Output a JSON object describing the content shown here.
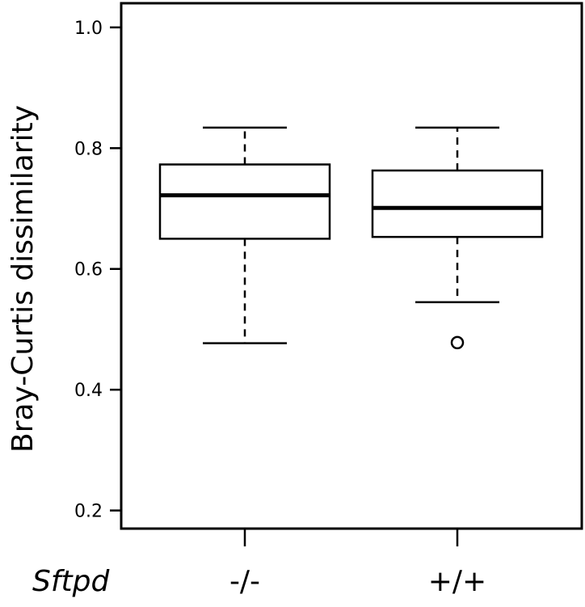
{
  "chart_data": {
    "type": "boxplot",
    "ylabel": "Bray-Curtis dissimilarity",
    "group_label": "Sftpd",
    "ylim": [
      0.17,
      1.04
    ],
    "yticks": [
      0.2,
      0.4,
      0.6,
      0.8,
      1.0
    ],
    "ytick_labels": [
      "0.2",
      "0.4",
      "0.6",
      "0.8",
      "1.0"
    ],
    "categories": [
      "-/-",
      "+/+"
    ],
    "boxes": [
      {
        "category": "-/-",
        "whisker_low": 0.477,
        "q1": 0.65,
        "median": 0.722,
        "q3": 0.773,
        "whisker_high": 0.834,
        "outliers": []
      },
      {
        "category": "+/+",
        "whisker_low": 0.545,
        "q1": 0.653,
        "median": 0.701,
        "q3": 0.763,
        "whisker_high": 0.834,
        "outliers": [
          0.478
        ]
      }
    ],
    "grid": false,
    "colors": {
      "box_fill": "#ffffff",
      "stroke": "#000000"
    }
  }
}
